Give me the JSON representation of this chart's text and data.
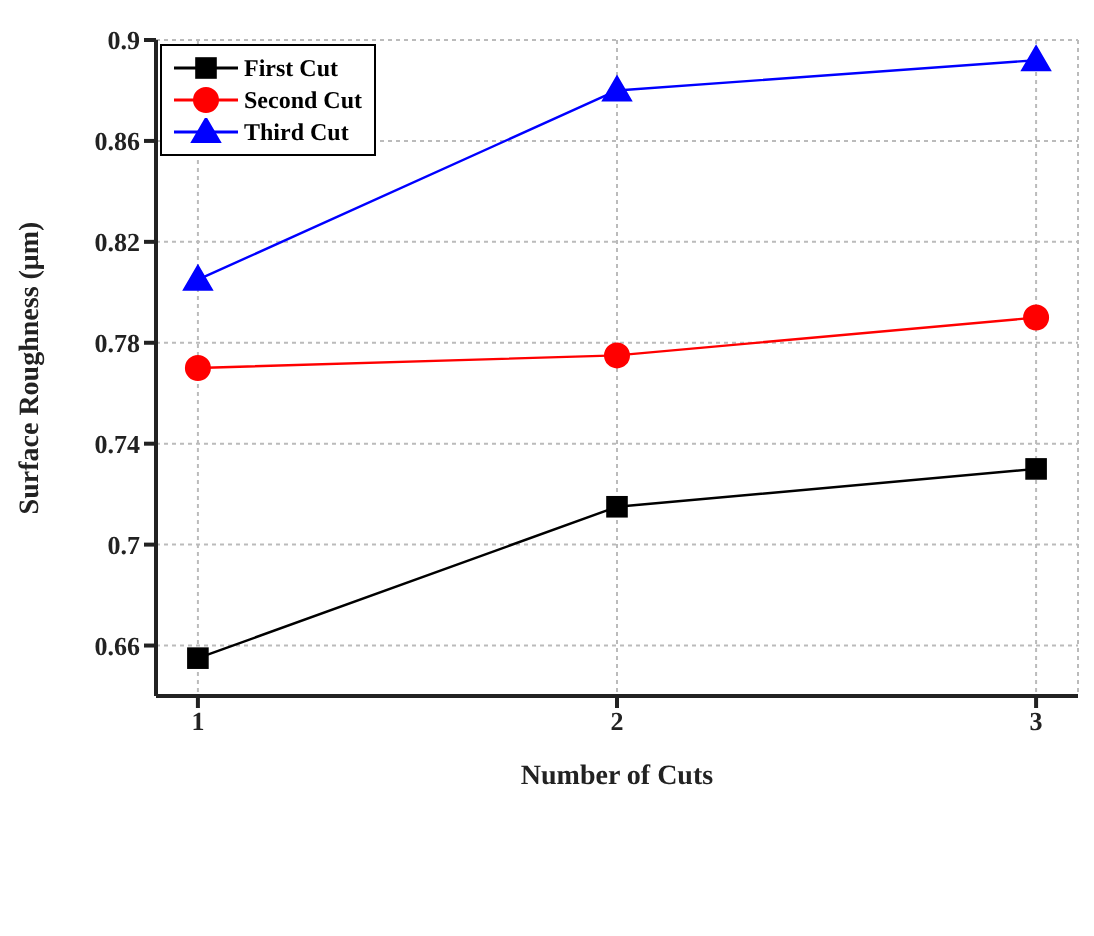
{
  "chart_data": {
    "type": "line",
    "xlabel": "Number of Cuts",
    "ylabel": "Surface Roughness (μm)",
    "x": [
      1,
      2,
      3
    ],
    "series": [
      {
        "name": "First Cut",
        "color": "#000000",
        "marker": "square",
        "values": [
          0.655,
          0.715,
          0.73
        ]
      },
      {
        "name": "Second Cut",
        "color": "#ff0000",
        "marker": "circle",
        "values": [
          0.77,
          0.775,
          0.79
        ]
      },
      {
        "name": "Third Cut",
        "color": "#0000ff",
        "marker": "triangle",
        "values": [
          0.805,
          0.88,
          0.892
        ]
      }
    ],
    "xlim": [
      0.9,
      3.1
    ],
    "xticks": [
      1,
      2,
      3
    ],
    "ylim": [
      0.64,
      0.9
    ],
    "yticks": [
      0.66,
      0.7,
      0.74,
      0.78,
      0.82,
      0.86,
      0.9
    ],
    "grid": true,
    "legend": "top left"
  }
}
